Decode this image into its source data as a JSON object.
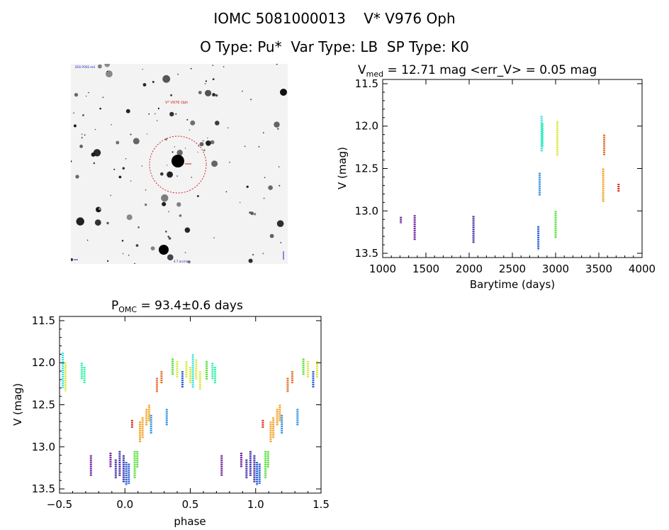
{
  "header": {
    "line1": "IOMC 5081000013    V* V976 Oph",
    "line2": "O Type: Pu*  Var Type: LB  SP Type: K0"
  },
  "finder_chart": {
    "top_left_label": "DSS POSS red",
    "target_label": "V* V976 Oph",
    "bottom_label": "4.7 arcmin"
  },
  "colors": {
    "c0": "#6a1b9a",
    "c1": "#3e2aa6",
    "c2": "#1f5bd6",
    "c3": "#2b8fe0",
    "c4": "#35e0e0",
    "c5": "#2ef0a8",
    "c6": "#55dd33",
    "c7": "#d8e838",
    "c8": "#f0a020",
    "c9": "#e06a20",
    "c10": "#d62d20"
  },
  "chart_data": [
    {
      "type": "scatter",
      "title_prefix": "V",
      "title_sub": "med",
      "title_rest": " = 12.71 mag <err_V> = 0.05 mag",
      "xlabel": "Barytime (days)",
      "ylabel": "V (mag)",
      "xlim": [
        1000,
        4000
      ],
      "ylim": [
        13.55,
        11.45
      ],
      "y_inverted": true,
      "x_ticks": [
        1000,
        1500,
        2000,
        2500,
        3000,
        3500,
        4000
      ],
      "y_ticks": [
        11.5,
        12.0,
        12.5,
        13.0,
        13.5
      ],
      "y_tick_labels": [
        "11.5",
        "12.0",
        "12.5",
        "13.0",
        "13.5"
      ],
      "segments": [
        {
          "x": 1210,
          "y1": 13.07,
          "y2": 13.15,
          "color": "c0"
        },
        {
          "x": 1370,
          "y1": 13.05,
          "y2": 13.35,
          "color": "c0"
        },
        {
          "x": 2050,
          "y1": 13.06,
          "y2": 13.38,
          "color": "c1"
        },
        {
          "x": 2800,
          "y1": 13.18,
          "y2": 13.46,
          "color": "c2"
        },
        {
          "x": 2815,
          "y1": 12.55,
          "y2": 12.82,
          "color": "c3"
        },
        {
          "x": 2838,
          "y1": 11.88,
          "y2": 12.3,
          "color": "c4"
        },
        {
          "x": 2848,
          "y1": 11.97,
          "y2": 12.25,
          "color": "c5"
        },
        {
          "x": 3000,
          "y1": 13.0,
          "y2": 13.32,
          "color": "c6"
        },
        {
          "x": 3020,
          "y1": 11.94,
          "y2": 12.35,
          "color": "c7"
        },
        {
          "x": 3550,
          "y1": 12.5,
          "y2": 12.9,
          "color": "c8"
        },
        {
          "x": 3562,
          "y1": 12.1,
          "y2": 12.35,
          "color": "c9"
        },
        {
          "x": 3728,
          "y1": 12.68,
          "y2": 12.78,
          "color": "c10"
        }
      ]
    },
    {
      "type": "scatter",
      "title_prefix": "P",
      "title_sub": "OMC",
      "title_rest": " = 93.4±0.6 days",
      "xlabel": "phase",
      "ylabel": "V (mag)",
      "xlim": [
        -0.5,
        1.5
      ],
      "ylim": [
        13.55,
        11.45
      ],
      "y_inverted": true,
      "x_ticks": [
        -0.5,
        0.0,
        0.5,
        1.0,
        1.5
      ],
      "x_tick_labels": [
        "−0.5",
        "0.0",
        "0.5",
        "1.0",
        "1.5"
      ],
      "y_ticks": [
        11.5,
        12.0,
        12.5,
        13.0,
        13.5
      ],
      "y_tick_labels": [
        "11.5",
        "12.0",
        "12.5",
        "13.0",
        "13.5"
      ],
      "segments": [
        {
          "x": -0.475,
          "y1": 11.88,
          "y2": 12.3,
          "color": "c4"
        },
        {
          "x": -0.455,
          "y1": 12.0,
          "y2": 12.34,
          "color": "c7"
        },
        {
          "x": -0.33,
          "y1": 12.0,
          "y2": 12.2,
          "color": "c5"
        },
        {
          "x": -0.31,
          "y1": 12.05,
          "y2": 12.25,
          "color": "c5"
        },
        {
          "x": -0.26,
          "y1": 13.1,
          "y2": 13.35,
          "color": "c0"
        },
        {
          "x": -0.11,
          "y1": 13.07,
          "y2": 13.25,
          "color": "c0"
        },
        {
          "x": -0.07,
          "y1": 13.15,
          "y2": 13.38,
          "color": "c1"
        },
        {
          "x": -0.04,
          "y1": 13.05,
          "y2": 13.35,
          "color": "c1"
        },
        {
          "x": -0.01,
          "y1": 13.1,
          "y2": 13.42,
          "color": "c1"
        },
        {
          "x": 0.01,
          "y1": 13.18,
          "y2": 13.46,
          "color": "c2"
        },
        {
          "x": 0.03,
          "y1": 13.2,
          "y2": 13.44,
          "color": "c2"
        },
        {
          "x": 0.055,
          "y1": 12.68,
          "y2": 12.78,
          "color": "c10"
        },
        {
          "x": 0.075,
          "y1": 13.05,
          "y2": 13.38,
          "color": "c6"
        },
        {
          "x": 0.095,
          "y1": 13.05,
          "y2": 13.25,
          "color": "c6"
        },
        {
          "x": 0.115,
          "y1": 12.7,
          "y2": 12.95,
          "color": "c8"
        },
        {
          "x": 0.135,
          "y1": 12.65,
          "y2": 12.9,
          "color": "c8"
        },
        {
          "x": 0.165,
          "y1": 12.55,
          "y2": 12.75,
          "color": "c8"
        },
        {
          "x": 0.185,
          "y1": 12.5,
          "y2": 12.7,
          "color": "c8"
        },
        {
          "x": 0.2,
          "y1": 12.62,
          "y2": 12.85,
          "color": "c3"
        },
        {
          "x": 0.245,
          "y1": 12.18,
          "y2": 12.35,
          "color": "c9"
        },
        {
          "x": 0.28,
          "y1": 12.1,
          "y2": 12.25,
          "color": "c9"
        },
        {
          "x": 0.32,
          "y1": 12.55,
          "y2": 12.75,
          "color": "c3"
        },
        {
          "x": 0.365,
          "y1": 11.95,
          "y2": 12.15,
          "color": "c6"
        },
        {
          "x": 0.4,
          "y1": 11.98,
          "y2": 12.18,
          "color": "c7"
        },
        {
          "x": 0.44,
          "y1": 12.1,
          "y2": 12.3,
          "color": "c2"
        },
        {
          "x": 0.47,
          "y1": 11.98,
          "y2": 12.18,
          "color": "c7"
        },
        {
          "x": 0.5,
          "y1": 12.05,
          "y2": 12.25,
          "color": "c7"
        },
        {
          "x": 0.52,
          "y1": 11.9,
          "y2": 12.3,
          "color": "c4"
        },
        {
          "x": 0.545,
          "y1": 11.96,
          "y2": 12.2,
          "color": "c7"
        },
        {
          "x": 0.575,
          "y1": 12.1,
          "y2": 12.32,
          "color": "c7"
        },
        {
          "x": 0.625,
          "y1": 11.98,
          "y2": 12.2,
          "color": "c6"
        },
        {
          "x": 0.67,
          "y1": 12.0,
          "y2": 12.2,
          "color": "c5"
        },
        {
          "x": 0.69,
          "y1": 12.05,
          "y2": 12.25,
          "color": "c5"
        },
        {
          "x": 0.74,
          "y1": 13.1,
          "y2": 13.35,
          "color": "c0"
        },
        {
          "x": 0.89,
          "y1": 13.07,
          "y2": 13.25,
          "color": "c0"
        },
        {
          "x": 0.93,
          "y1": 13.15,
          "y2": 13.38,
          "color": "c1"
        },
        {
          "x": 0.96,
          "y1": 13.05,
          "y2": 13.35,
          "color": "c1"
        },
        {
          "x": 0.99,
          "y1": 13.1,
          "y2": 13.42,
          "color": "c1"
        },
        {
          "x": 1.01,
          "y1": 13.18,
          "y2": 13.46,
          "color": "c2"
        },
        {
          "x": 1.03,
          "y1": 13.2,
          "y2": 13.44,
          "color": "c2"
        },
        {
          "x": 1.055,
          "y1": 12.68,
          "y2": 12.78,
          "color": "c10"
        },
        {
          "x": 1.075,
          "y1": 13.05,
          "y2": 13.38,
          "color": "c6"
        },
        {
          "x": 1.095,
          "y1": 13.05,
          "y2": 13.25,
          "color": "c6"
        },
        {
          "x": 1.115,
          "y1": 12.7,
          "y2": 12.95,
          "color": "c8"
        },
        {
          "x": 1.135,
          "y1": 12.65,
          "y2": 12.9,
          "color": "c8"
        },
        {
          "x": 1.165,
          "y1": 12.55,
          "y2": 12.75,
          "color": "c8"
        },
        {
          "x": 1.185,
          "y1": 12.5,
          "y2": 12.7,
          "color": "c8"
        },
        {
          "x": 1.2,
          "y1": 12.62,
          "y2": 12.85,
          "color": "c3"
        },
        {
          "x": 1.245,
          "y1": 12.18,
          "y2": 12.35,
          "color": "c9"
        },
        {
          "x": 1.28,
          "y1": 12.1,
          "y2": 12.25,
          "color": "c9"
        },
        {
          "x": 1.32,
          "y1": 12.55,
          "y2": 12.75,
          "color": "c3"
        },
        {
          "x": 1.365,
          "y1": 11.95,
          "y2": 12.15,
          "color": "c6"
        },
        {
          "x": 1.4,
          "y1": 11.98,
          "y2": 12.18,
          "color": "c7"
        },
        {
          "x": 1.44,
          "y1": 12.1,
          "y2": 12.3,
          "color": "c2"
        },
        {
          "x": 1.47,
          "y1": 11.98,
          "y2": 12.18,
          "color": "c7"
        }
      ]
    }
  ]
}
